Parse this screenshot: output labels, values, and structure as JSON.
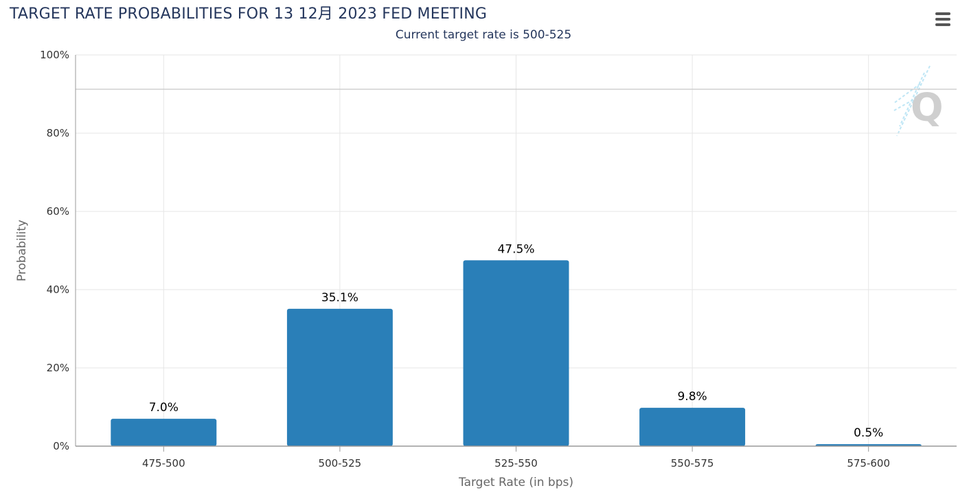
{
  "title": "TARGET RATE PROBABILITIES FOR 13 12月 2023 FED MEETING",
  "subtitle": "Current target rate is 500-525",
  "menu_icon": "hamburger-menu-icon",
  "watermark_icon": "quikstrike-q-logo",
  "chart_data": {
    "type": "bar",
    "categories": [
      "475-500",
      "500-525",
      "525-550",
      "550-575",
      "575-600"
    ],
    "values": [
      7.0,
      35.1,
      47.5,
      9.8,
      0.5
    ],
    "data_labels": [
      "7.0%",
      "35.1%",
      "47.5%",
      "9.8%",
      "0.5%"
    ],
    "title": "TARGET RATE PROBABILITIES FOR 13 12月 2023 FED MEETING",
    "subtitle": "Current target rate is 500-525",
    "xlabel": "Target Rate (in bps)",
    "ylabel": "Probability",
    "ylim": [
      0,
      100
    ],
    "yticks": [
      0,
      20,
      40,
      60,
      80,
      100
    ],
    "ytick_labels": [
      "0%",
      "20%",
      "40%",
      "60%",
      "80%",
      "100%"
    ],
    "grid": true,
    "bar_color": "#2a7fb8",
    "grid_color": "#e6e6e6",
    "axis_color": "#999999"
  }
}
